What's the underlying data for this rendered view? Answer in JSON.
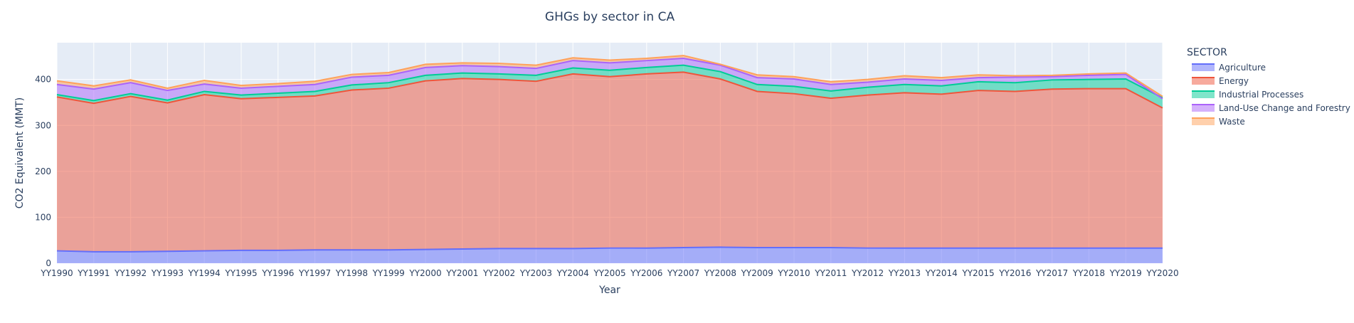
{
  "chart_data": {
    "type": "area",
    "stacked": true,
    "title": "GHGs by sector in CA",
    "xlabel": "Year",
    "ylabel": "CO2 Equivalent (MMT)",
    "ylim": [
      0,
      480
    ],
    "yticks": [
      0,
      100,
      200,
      300,
      400
    ],
    "grid": true,
    "legend": {
      "title": "SECTOR",
      "placement": "right"
    },
    "x": [
      "YY1990",
      "YY1991",
      "YY1992",
      "YY1993",
      "YY1994",
      "YY1995",
      "YY1996",
      "YY1997",
      "YY1998",
      "YY1999",
      "YY2000",
      "YY2001",
      "YY2002",
      "YY2003",
      "YY2004",
      "YY2005",
      "YY2006",
      "YY2007",
      "YY2008",
      "YY2009",
      "YY2010",
      "YY2011",
      "YY2012",
      "YY2013",
      "YY2014",
      "YY2015",
      "YY2016",
      "YY2017",
      "YY2018",
      "YY2019",
      "YY2020"
    ],
    "series": [
      {
        "name": "Agriculture",
        "color": "#636efa",
        "values": [
          27,
          25,
          25,
          26,
          27,
          28,
          28,
          29,
          29,
          29,
          30,
          31,
          32,
          32,
          32,
          33,
          33,
          34,
          35,
          34,
          34,
          34,
          33,
          33,
          33,
          33,
          33,
          33,
          33,
          33,
          33
        ]
      },
      {
        "name": "Energy",
        "color": "#ef553b",
        "values": [
          335,
          323,
          338,
          323,
          340,
          330,
          333,
          335,
          348,
          352,
          367,
          371,
          368,
          364,
          380,
          373,
          379,
          382,
          366,
          340,
          335,
          325,
          333,
          338,
          335,
          343,
          341,
          346,
          347,
          347,
          305
        ]
      },
      {
        "name": "Industrial Processes",
        "color": "#00cc96",
        "values": [
          5,
          6,
          6,
          6,
          7,
          8,
          9,
          10,
          11,
          12,
          12,
          12,
          12,
          13,
          13,
          14,
          14,
          15,
          16,
          15,
          16,
          16,
          17,
          18,
          18,
          19,
          19,
          20,
          20,
          21,
          22
        ]
      },
      {
        "name": "Land-Use Change and Forestry",
        "color": "#ab63fa",
        "values": [
          22,
          25,
          24,
          21,
          16,
          15,
          15,
          15,
          17,
          16,
          17,
          16,
          16,
          15,
          16,
          16,
          15,
          15,
          14,
          15,
          16,
          14,
          11,
          12,
          12,
          9,
          12,
          7,
          9,
          10,
          -2
        ]
      },
      {
        "name": "Waste",
        "color": "#ffa15a",
        "values": [
          8,
          7,
          6,
          5,
          8,
          6,
          6,
          7,
          6,
          6,
          7,
          6,
          7,
          7,
          6,
          6,
          5,
          6,
          2,
          6,
          5,
          6,
          6,
          7,
          6,
          6,
          3,
          3,
          3,
          3,
          5
        ]
      }
    ]
  }
}
